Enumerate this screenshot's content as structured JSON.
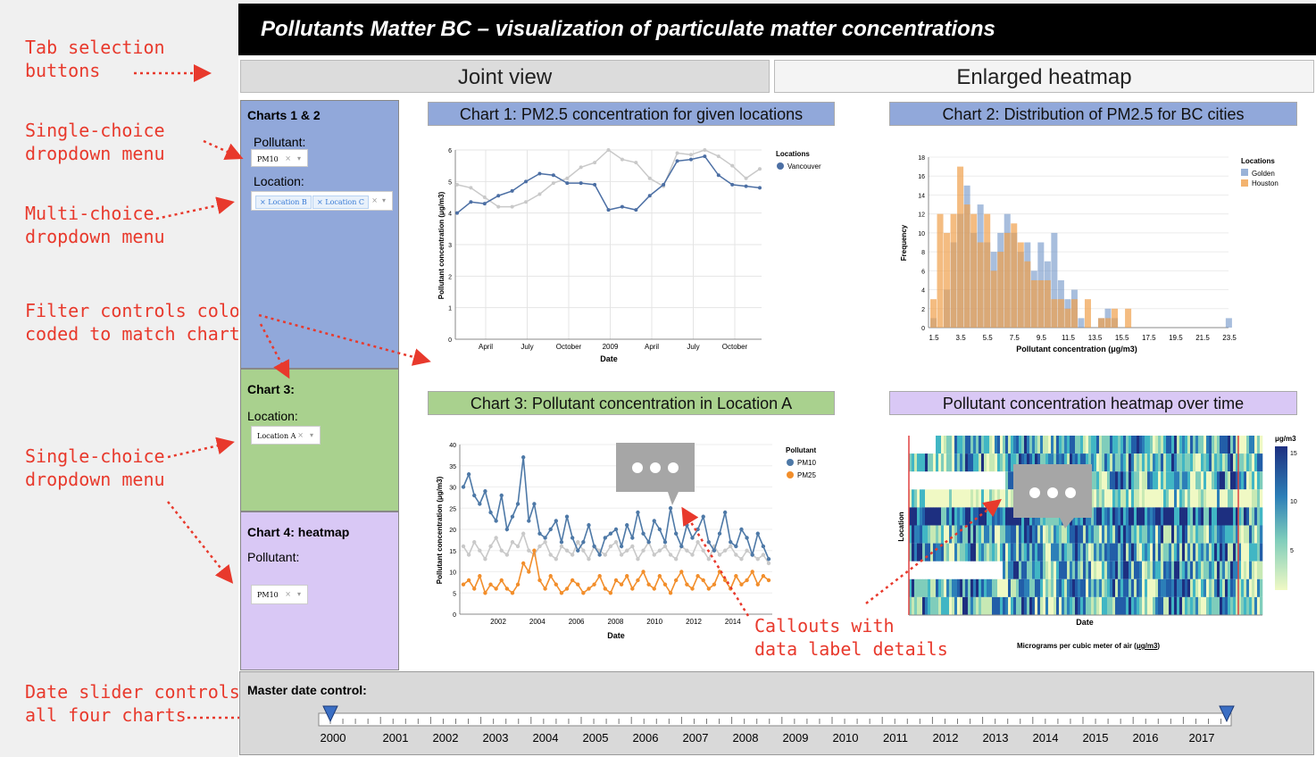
{
  "annotations": {
    "tab_selection": "Tab selection\nbuttons",
    "single_choice_1": "Single-choice\ndropdown menu",
    "multi_choice": "Multi-choice\ndropdown menu",
    "filter_controls": "Filter controls color\ncoded to match charts",
    "single_choice_2": "Single-choice\ndropdown menu",
    "callouts": "Callouts with\ndata label details",
    "date_slider": "Date slider controls\nall four charts"
  },
  "header": {
    "title": "Pollutants Matter BC – visualization of particulate matter concentrations"
  },
  "tabs": [
    {
      "label": "Joint view"
    },
    {
      "label": "Enlarged heatmap"
    }
  ],
  "sidebar": {
    "panel1": {
      "title": "Charts 1 & 2",
      "pollutant_label": "Pollutant:",
      "pollutant_value": "PM10",
      "location_label": "Location:",
      "location_chips": [
        "Location B",
        "Location C"
      ]
    },
    "panel3": {
      "title": "Chart 3:",
      "location_label": "Location:",
      "location_value": "Location A"
    },
    "panel4": {
      "title": "Chart 4: heatmap",
      "pollutant_label": "Pollutant:",
      "pollutant_value": "PM10"
    }
  },
  "colors": {
    "chart12": "#91a8da",
    "chart3": "#a9d18e",
    "chart4": "#d9c8f5",
    "vancouver": "#4c6fa4",
    "grey_series": "#c9c9c9",
    "pm10": "#4e79a7",
    "pm25": "#f28e2b",
    "golden": "#6e92c6",
    "houston": "#f0a04b",
    "accent": "#e8392c"
  },
  "chart_data": [
    {
      "type": "line",
      "title": "Chart 1: PM2.5 concentration for given locations",
      "xlabel": "Date",
      "ylabel": "Pollutant concentration (μg/m3)",
      "x_ticks": [
        "April",
        "July",
        "October",
        "2009",
        "April",
        "July",
        "October"
      ],
      "ylim": [
        0,
        6
      ],
      "y_ticks": [
        0,
        1,
        2,
        3,
        4,
        5,
        6
      ],
      "legend_title": "Locations",
      "series": [
        {
          "name": "Vancouver",
          "values": [
            4.0,
            4.35,
            4.3,
            4.55,
            4.7,
            5.0,
            5.25,
            5.2,
            4.95,
            4.95,
            4.9,
            4.1,
            4.2,
            4.1,
            4.55,
            4.9,
            5.65,
            5.7,
            5.8,
            5.2,
            4.9,
            4.85,
            4.8
          ]
        },
        {
          "values": [
            4.9,
            4.8,
            4.5,
            4.2,
            4.2,
            4.35,
            4.6,
            4.95,
            5.1,
            5.45,
            5.6,
            6.0,
            5.7,
            5.6,
            5.1,
            4.85,
            5.9,
            5.85,
            6.0,
            5.8,
            5.5,
            5.1,
            5.4
          ]
        }
      ]
    },
    {
      "type": "bar",
      "title": "Chart 2: Distribution of PM2.5 for BC cities",
      "xlabel": "Pollutant concentration (μg/m3)",
      "ylabel": "Frequency",
      "x_ticks": [
        "1.5",
        "3.5",
        "5.5",
        "7.5",
        "9.5",
        "11.5",
        "13.5",
        "15.5",
        "17.5",
        "19.5",
        "21.5",
        "23.5"
      ],
      "ylim": [
        0,
        18
      ],
      "y_ticks": [
        0,
        2,
        4,
        6,
        8,
        10,
        12,
        14,
        16,
        18
      ],
      "legend_title": "Locations",
      "bins": [
        1.5,
        2.0,
        2.5,
        3.0,
        3.5,
        4.0,
        4.5,
        5.0,
        5.5,
        6.0,
        6.5,
        7.0,
        7.5,
        8.0,
        8.5,
        9.0,
        9.5,
        10.0,
        10.5,
        11.0,
        11.5,
        12.0,
        12.5,
        13.0,
        13.5,
        14.0,
        14.5,
        15.0,
        15.5,
        16.0,
        16.5,
        17.0,
        17.5,
        18.0,
        18.5,
        19.0,
        19.5,
        20.0,
        20.5,
        21.0,
        21.5,
        22.0,
        22.5,
        23.0,
        23.5
      ],
      "series": [
        {
          "name": "Golden",
          "values": [
            1,
            0,
            4,
            9,
            12,
            15,
            10,
            13,
            9,
            8,
            10,
            12,
            10,
            8,
            9,
            6,
            9,
            7,
            10,
            5,
            3,
            4,
            1,
            0,
            0,
            1,
            2,
            1,
            0,
            0,
            0,
            0,
            0,
            0,
            0,
            0,
            0,
            0,
            0,
            0,
            0,
            0,
            0,
            0,
            1
          ]
        },
        {
          "name": "Houston",
          "values": [
            3,
            12,
            10,
            12,
            17,
            13,
            12,
            9,
            12,
            6,
            8,
            10,
            11,
            9,
            7,
            5,
            5,
            5,
            3,
            3,
            2,
            3,
            0,
            3,
            0,
            1,
            1,
            2,
            0,
            2,
            0,
            0,
            0,
            0,
            0,
            0,
            0,
            0,
            0,
            0,
            0,
            0,
            0,
            0,
            0
          ]
        }
      ]
    },
    {
      "type": "line",
      "title": "Chart 3: Pollutant concentration in Location A",
      "xlabel": "Date",
      "ylabel": "Pollutant concentration (μg/m3)",
      "x_ticks": [
        "2002",
        "2004",
        "2006",
        "2008",
        "2010",
        "2012",
        "2014"
      ],
      "ylim": [
        0,
        40
      ],
      "y_ticks": [
        0,
        5,
        10,
        15,
        20,
        25,
        30,
        35,
        40
      ],
      "legend_title": "Pollutant",
      "series": [
        {
          "name": "PM10",
          "values": [
            30,
            33,
            28,
            26,
            29,
            24,
            22,
            28,
            20,
            23,
            26,
            37,
            22,
            26,
            19,
            18,
            20,
            22,
            17,
            23,
            18,
            15,
            17,
            21,
            16,
            14,
            18,
            19,
            20,
            16,
            21,
            18,
            24,
            19,
            17,
            22,
            20,
            17,
            25,
            19,
            16,
            21,
            18,
            20,
            23,
            17,
            15,
            19,
            24,
            17,
            16,
            20,
            18,
            14,
            19,
            16,
            13
          ]
        },
        {
          "values": [
            16,
            14,
            17,
            15,
            13,
            16,
            18,
            15,
            14,
            17,
            16,
            19,
            15,
            14,
            16,
            17,
            14,
            13,
            16,
            15,
            14,
            17,
            15,
            13,
            16,
            15,
            14,
            16,
            17,
            14,
            15,
            16,
            13,
            15,
            17,
            14,
            15,
            16,
            14,
            13,
            16,
            15,
            14,
            17,
            15,
            13,
            16,
            14,
            15,
            16,
            14,
            13,
            15,
            14,
            13,
            14,
            12
          ]
        },
        {
          "name": "PM25",
          "values": [
            7,
            8,
            6,
            9,
            5,
            7,
            6,
            8,
            6,
            5,
            7,
            12,
            10,
            15,
            8,
            6,
            9,
            7,
            5,
            6,
            8,
            7,
            5,
            6,
            7,
            9,
            6,
            5,
            8,
            7,
            9,
            6,
            8,
            10,
            7,
            6,
            9,
            7,
            5,
            8,
            10,
            7,
            6,
            9,
            8,
            6,
            7,
            10,
            8,
            6,
            9,
            7,
            8,
            10,
            7,
            9,
            8
          ]
        }
      ]
    },
    {
      "type": "heatmap",
      "title": "Pollutant concentration heatmap over time",
      "xlabel": "Date",
      "ylabel": "Location",
      "colorbar_title": "μg/m3",
      "colorbar_ticks": [
        "15",
        "10",
        "5"
      ],
      "caption_prefix": "Micrograms per cubic meter of air (",
      "caption_unit": "μg/m3",
      "caption_suffix": ")"
    }
  ],
  "master": {
    "label": "Master date control:",
    "years": [
      "2000",
      "2001",
      "2002",
      "2003",
      "2004",
      "2005",
      "2006",
      "2007",
      "2008",
      "2009",
      "2010",
      "2011",
      "2012",
      "2013",
      "2014",
      "2015",
      "2016",
      "2017"
    ]
  }
}
